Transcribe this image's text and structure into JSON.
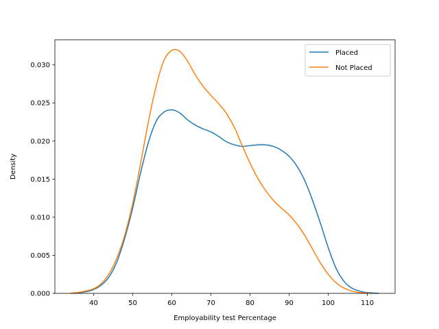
{
  "chart_data": {
    "type": "line",
    "title": "",
    "xlabel": "Employability test Percentage",
    "ylabel": "Density",
    "xlim": [
      30.1,
      117.1
    ],
    "ylim": [
      0,
      0.0333
    ],
    "xticks": [
      40,
      50,
      60,
      70,
      80,
      90,
      100,
      110
    ],
    "yticks": [
      0.0,
      0.005,
      0.01,
      0.015,
      0.02,
      0.025,
      0.03
    ],
    "ytick_labels": [
      "0.000",
      "0.005",
      "0.010",
      "0.015",
      "0.020",
      "0.025",
      "0.030"
    ],
    "grid": false,
    "legend_position": "top-right",
    "series": [
      {
        "name": "Placed",
        "color": "#1f77b4",
        "x": [
          35,
          38,
          40,
          42,
          44,
          46,
          48,
          50,
          52,
          54,
          56,
          58,
          60,
          62,
          64,
          66,
          68,
          70,
          72,
          74,
          76,
          78,
          80,
          82,
          84,
          86,
          88,
          90,
          92,
          94,
          96,
          98,
          100,
          102,
          104,
          106,
          108,
          110,
          113
        ],
        "y": [
          0.0,
          0.0002,
          0.0005,
          0.0011,
          0.0022,
          0.0042,
          0.0073,
          0.0112,
          0.0158,
          0.0198,
          0.0226,
          0.0238,
          0.0241,
          0.0237,
          0.0228,
          0.0221,
          0.0216,
          0.0212,
          0.0206,
          0.0199,
          0.0195,
          0.0193,
          0.0194,
          0.0195,
          0.0195,
          0.0193,
          0.0188,
          0.018,
          0.0167,
          0.0148,
          0.0122,
          0.0092,
          0.006,
          0.0033,
          0.0016,
          0.0007,
          0.0003,
          0.0001,
          0.0
        ]
      },
      {
        "name": "Not Placed",
        "color": "#ff7f0e",
        "x": [
          34,
          37,
          40,
          42,
          44,
          46,
          48,
          50,
          52,
          54,
          56,
          58,
          60,
          62,
          64,
          66,
          68,
          70,
          72,
          74,
          76,
          78,
          80,
          82,
          84,
          86,
          88,
          90,
          92,
          94,
          96,
          98,
          100,
          102,
          104,
          106,
          108,
          111
        ],
        "y": [
          0.0,
          0.0002,
          0.0006,
          0.0013,
          0.0026,
          0.0047,
          0.0077,
          0.0118,
          0.017,
          0.0225,
          0.0272,
          0.0306,
          0.0319,
          0.0318,
          0.0305,
          0.0287,
          0.0272,
          0.026,
          0.0249,
          0.0236,
          0.0218,
          0.0194,
          0.0171,
          0.0151,
          0.0135,
          0.0122,
          0.0112,
          0.0103,
          0.0091,
          0.0076,
          0.0058,
          0.004,
          0.0025,
          0.0014,
          0.0007,
          0.0003,
          0.0001,
          0.0
        ]
      }
    ]
  }
}
